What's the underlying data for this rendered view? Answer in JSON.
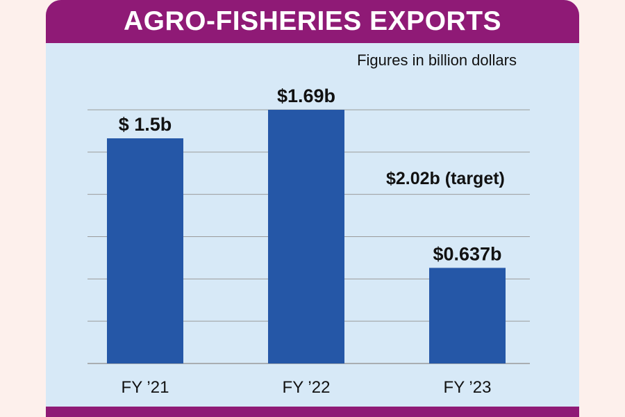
{
  "chart_data": {
    "type": "bar",
    "title": "AGRO-FISHERIES EXPORTS",
    "subtitle": "Figures in billion dollars",
    "categories": [
      "FY ’21",
      "FY ’22",
      "FY ’23"
    ],
    "values": [
      1.5,
      1.69,
      0.637
    ],
    "value_labels": [
      "$ 1.5b",
      "$1.69b",
      "$0.637b"
    ],
    "annotation": "$2.02b (target)",
    "ylim": [
      0,
      1.69
    ],
    "grid": true,
    "colors": {
      "bar": "#2557a7",
      "title_band": "#8f1a76",
      "plot_background": "#d7e9f7",
      "gridline": "#9a9a9a"
    }
  }
}
